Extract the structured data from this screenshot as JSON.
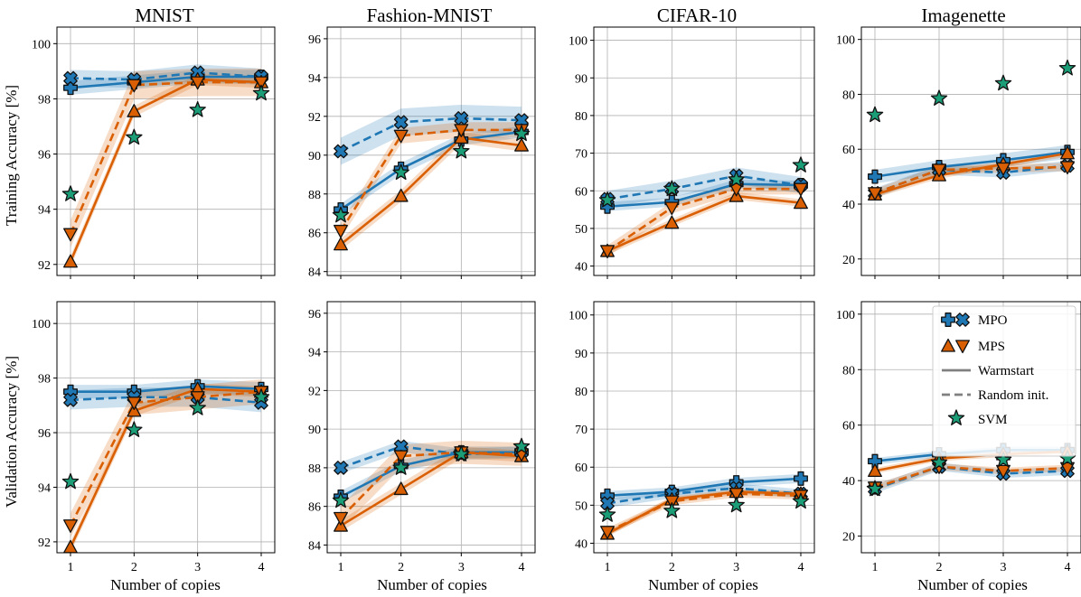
{
  "colors": {
    "mpo": "#1f77b4",
    "mps": "#d95f02",
    "svm": "#1b9e77",
    "legend_line": "#808080"
  },
  "legend": {
    "position": "bottom-right panel, upper-right",
    "mpo_label": "MPO",
    "mps_label": "MPS",
    "warm_label": "Warmstart",
    "random_label": "Random init.",
    "svm_label": "SVM"
  },
  "row_labels": {
    "train": "Training Accuracy [%]",
    "val": "Validation Accuracy [%]"
  },
  "chart_data": [
    {
      "type": "line",
      "dataset": "MNIST",
      "row": "train",
      "title": "MNIST",
      "xlabel": "",
      "ylabel": "Training Accuracy [%]",
      "x": [
        1,
        2,
        3,
        4
      ],
      "ylim": [
        91.6,
        100.6
      ],
      "yticks": [
        92,
        94,
        96,
        98,
        100
      ],
      "grid": true,
      "series": [
        {
          "name": "MPO Warmstart",
          "values": [
            98.4,
            98.6,
            98.8,
            98.8
          ],
          "band": 0.25
        },
        {
          "name": "MPO Random init.",
          "values": [
            98.75,
            98.7,
            98.95,
            98.8
          ],
          "band": 0.3
        },
        {
          "name": "MPS Warmstart",
          "values": [
            92.1,
            97.55,
            98.7,
            98.6
          ],
          "band": 0.2
        },
        {
          "name": "MPS Random init.",
          "values": [
            93.1,
            98.5,
            98.6,
            98.6
          ],
          "band": 0.5
        },
        {
          "name": "SVM",
          "values": [
            94.55,
            96.6,
            97.6,
            98.2
          ]
        }
      ]
    },
    {
      "type": "line",
      "dataset": "Fashion-MNIST",
      "row": "train",
      "title": "Fashion-MNIST",
      "xlabel": "",
      "ylabel": "",
      "x": [
        1,
        2,
        3,
        4
      ],
      "ylim": [
        83.8,
        96.6
      ],
      "yticks": [
        84,
        86,
        88,
        90,
        92,
        94,
        96
      ],
      "grid": true,
      "series": [
        {
          "name": "MPO Warmstart",
          "values": [
            87.2,
            89.3,
            90.8,
            91.2
          ],
          "band": 0.3
        },
        {
          "name": "MPO Random init.",
          "values": [
            90.2,
            91.7,
            91.9,
            91.8
          ],
          "band": 0.7
        },
        {
          "name": "MPS Warmstart",
          "values": [
            85.4,
            87.9,
            90.9,
            90.5
          ],
          "band": 0.3
        },
        {
          "name": "MPS Random init.",
          "values": [
            86.1,
            91.0,
            91.3,
            91.3
          ],
          "band": 0.4
        },
        {
          "name": "SVM",
          "values": [
            86.9,
            89.1,
            90.2,
            91.1
          ]
        }
      ]
    },
    {
      "type": "line",
      "dataset": "CIFAR-10",
      "row": "train",
      "title": "CIFAR-10",
      "xlabel": "",
      "ylabel": "",
      "x": [
        1,
        2,
        3,
        4
      ],
      "ylim": [
        37.5,
        103.5
      ],
      "yticks": [
        40,
        50,
        60,
        70,
        80,
        90,
        100
      ],
      "grid": true,
      "series": [
        {
          "name": "MPO Warmstart",
          "values": [
            55.8,
            57.0,
            61.8,
            61.5
          ],
          "band": 1.2
        },
        {
          "name": "MPO Random init.",
          "values": [
            57.8,
            60.5,
            64.0,
            61.5
          ],
          "band": 2.2
        },
        {
          "name": "MPS Warmstart",
          "values": [
            44.0,
            51.5,
            58.6,
            56.8
          ],
          "band": 1.0
        },
        {
          "name": "MPS Random init.",
          "values": [
            44.0,
            55.5,
            60.5,
            60.5
          ],
          "band": 1.5
        },
        {
          "name": "SVM",
          "values": [
            57.5,
            60.5,
            63.0,
            66.8
          ]
        }
      ]
    },
    {
      "type": "line",
      "dataset": "Imagenette",
      "row": "train",
      "title": "Imagenette",
      "xlabel": "",
      "ylabel": "",
      "x": [
        1,
        2,
        3,
        4
      ],
      "ylim": [
        14.0,
        104.5
      ],
      "yticks": [
        20,
        40,
        60,
        80,
        100
      ],
      "grid": true,
      "series": [
        {
          "name": "MPO Warmstart",
          "values": [
            50.0,
            53.5,
            56.0,
            59.0
          ],
          "band": 2.5
        },
        {
          "name": "MPO Random init.",
          "values": [
            44.0,
            52.5,
            51.5,
            54.0
          ],
          "band": 1.8
        },
        {
          "name": "MPS Warmstart",
          "values": [
            43.5,
            50.5,
            54.5,
            58.5
          ],
          "band": 1.2
        },
        {
          "name": "MPS Random init.",
          "values": [
            44.0,
            52.5,
            53.0,
            53.5
          ],
          "band": 1.5
        },
        {
          "name": "SVM",
          "values": [
            72.5,
            78.5,
            84.0,
            89.5
          ]
        }
      ]
    },
    {
      "type": "line",
      "dataset": "MNIST",
      "row": "val",
      "title": "",
      "xlabel": "Number of copies",
      "ylabel": "Validation Accuracy [%]",
      "x": [
        1,
        2,
        3,
        4
      ],
      "ylim": [
        91.6,
        100.8
      ],
      "yticks": [
        92,
        94,
        96,
        98,
        100
      ],
      "grid": true,
      "series": [
        {
          "name": "MPO Warmstart",
          "values": [
            97.5,
            97.5,
            97.7,
            97.6
          ],
          "band": 0.25
        },
        {
          "name": "MPO Random init.",
          "values": [
            97.2,
            97.3,
            97.3,
            97.1
          ],
          "band": 0.35
        },
        {
          "name": "MPS Warmstart",
          "values": [
            91.8,
            96.8,
            97.6,
            97.5
          ],
          "band": 0.2
        },
        {
          "name": "MPS Random init.",
          "values": [
            92.6,
            97.1,
            97.3,
            97.5
          ],
          "band": 0.45
        },
        {
          "name": "SVM",
          "values": [
            94.2,
            96.1,
            96.9,
            97.3
          ]
        }
      ]
    },
    {
      "type": "line",
      "dataset": "Fashion-MNIST",
      "row": "val",
      "title": "",
      "xlabel": "Number of copies",
      "ylabel": "",
      "x": [
        1,
        2,
        3,
        4
      ],
      "ylim": [
        83.6,
        96.6
      ],
      "yticks": [
        84,
        86,
        88,
        90,
        92,
        94,
        96
      ],
      "grid": true,
      "series": [
        {
          "name": "MPO Warmstart",
          "values": [
            86.5,
            88.1,
            88.8,
            88.8
          ],
          "band": 0.3
        },
        {
          "name": "MPO Random init.",
          "values": [
            88.0,
            89.1,
            88.7,
            88.8
          ],
          "band": 0.3
        },
        {
          "name": "MPS Warmstart",
          "values": [
            85.0,
            86.9,
            88.8,
            88.6
          ],
          "band": 0.3
        },
        {
          "name": "MPS Random init.",
          "values": [
            85.4,
            88.6,
            88.8,
            88.7
          ],
          "band": 0.6
        },
        {
          "name": "SVM",
          "values": [
            86.3,
            88.0,
            88.7,
            89.1
          ]
        }
      ]
    },
    {
      "type": "line",
      "dataset": "CIFAR-10",
      "row": "val",
      "title": "",
      "xlabel": "Number of copies",
      "ylabel": "",
      "x": [
        1,
        2,
        3,
        4
      ],
      "ylim": [
        37.5,
        103.5
      ],
      "yticks": [
        40,
        50,
        60,
        70,
        80,
        90,
        100
      ],
      "grid": true,
      "series": [
        {
          "name": "MPO Warmstart",
          "values": [
            52.5,
            53.5,
            56.0,
            57.0
          ],
          "band": 1.2
        },
        {
          "name": "MPO Random init.",
          "values": [
            50.5,
            53.0,
            54.5,
            53.0
          ],
          "band": 1.2
        },
        {
          "name": "MPS Warmstart",
          "values": [
            42.5,
            51.5,
            53.5,
            53.0
          ],
          "band": 0.8
        },
        {
          "name": "MPS Random init.",
          "values": [
            43.0,
            51.0,
            53.0,
            52.5
          ],
          "band": 1.0
        },
        {
          "name": "SVM",
          "values": [
            47.5,
            48.5,
            50.0,
            51.0
          ]
        }
      ]
    },
    {
      "type": "line",
      "dataset": "Imagenette",
      "row": "val",
      "title": "",
      "xlabel": "Number of copies",
      "ylabel": "",
      "x": [
        1,
        2,
        3,
        4
      ],
      "ylim": [
        14.0,
        104.5
      ],
      "yticks": [
        20,
        40,
        60,
        80,
        100
      ],
      "grid": true,
      "series": [
        {
          "name": "MPO Warmstart",
          "values": [
            47.0,
            49.5,
            51.0,
            51.0
          ],
          "band": 1.2
        },
        {
          "name": "MPO Random init.",
          "values": [
            37.0,
            45.0,
            42.5,
            43.5
          ],
          "band": 1.5
        },
        {
          "name": "MPS Warmstart",
          "values": [
            43.5,
            48.0,
            49.5,
            50.5
          ],
          "band": 1.0
        },
        {
          "name": "MPS Random init.",
          "values": [
            37.5,
            45.0,
            43.5,
            44.5
          ],
          "band": 1.2
        },
        {
          "name": "SVM",
          "values": [
            37.0,
            46.5,
            47.5,
            48.0
          ]
        }
      ]
    }
  ]
}
